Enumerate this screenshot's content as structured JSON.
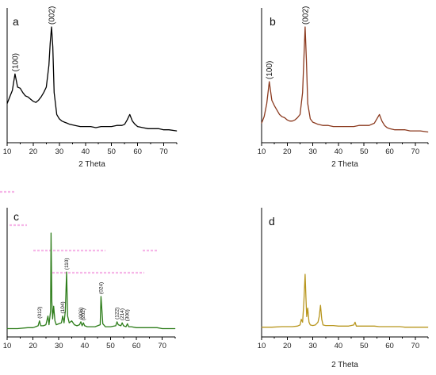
{
  "chart_data": [
    {
      "panel": "a",
      "type": "line",
      "xlabel": "2 Theta",
      "xlim": [
        10,
        75
      ],
      "xticks": [
        "10",
        "20",
        "30",
        "40",
        "50",
        "60",
        "70"
      ],
      "color": "#000000",
      "x": [
        10,
        11,
        12,
        13,
        14,
        15,
        16,
        17,
        18,
        19,
        20,
        21,
        22,
        23,
        24,
        25,
        26,
        26.5,
        27,
        27.5,
        28,
        29,
        30,
        31,
        32,
        33,
        34,
        36,
        38,
        40,
        42,
        44,
        46,
        48,
        50,
        52,
        54,
        55,
        56,
        57,
        58,
        59,
        60,
        62,
        64,
        66,
        68,
        70,
        72,
        75
      ],
      "y": [
        0.3,
        0.36,
        0.42,
        0.57,
        0.45,
        0.44,
        0.4,
        0.37,
        0.36,
        0.34,
        0.32,
        0.31,
        0.33,
        0.36,
        0.4,
        0.45,
        0.65,
        0.85,
        1.0,
        0.82,
        0.4,
        0.2,
        0.16,
        0.14,
        0.13,
        0.12,
        0.11,
        0.1,
        0.09,
        0.09,
        0.09,
        0.08,
        0.09,
        0.09,
        0.09,
        0.1,
        0.1,
        0.11,
        0.15,
        0.2,
        0.14,
        0.11,
        0.09,
        0.08,
        0.07,
        0.07,
        0.07,
        0.06,
        0.06,
        0.05
      ],
      "peaks": [
        {
          "x": 13,
          "y": 0.57,
          "label": "(100)"
        },
        {
          "x": 27,
          "y": 1.0,
          "label": "(002)"
        }
      ]
    },
    {
      "panel": "b",
      "type": "line",
      "xlabel": "2 Theta",
      "xlim": [
        10,
        75
      ],
      "xticks": [
        "10",
        "20",
        "30",
        "40",
        "50",
        "60",
        "70"
      ],
      "color": "#8b3a1f",
      "x": [
        10,
        11,
        12,
        13,
        14,
        15,
        16,
        17,
        18,
        19,
        20,
        21,
        22,
        23,
        24,
        25,
        26,
        26.5,
        27,
        27.5,
        28,
        29,
        30,
        31,
        32,
        34,
        36,
        38,
        40,
        42,
        44,
        46,
        48,
        50,
        52,
        54,
        55,
        56,
        57,
        58,
        59,
        60,
        62,
        64,
        66,
        68,
        70,
        72,
        75
      ],
      "y": [
        0.12,
        0.18,
        0.3,
        0.5,
        0.33,
        0.28,
        0.24,
        0.2,
        0.18,
        0.17,
        0.15,
        0.14,
        0.14,
        0.15,
        0.17,
        0.2,
        0.4,
        0.7,
        1.0,
        0.7,
        0.3,
        0.16,
        0.13,
        0.12,
        0.11,
        0.1,
        0.1,
        0.09,
        0.09,
        0.09,
        0.09,
        0.09,
        0.1,
        0.1,
        0.1,
        0.12,
        0.16,
        0.2,
        0.14,
        0.1,
        0.08,
        0.07,
        0.06,
        0.06,
        0.06,
        0.05,
        0.05,
        0.05,
        0.04
      ],
      "peaks": [
        {
          "x": 13,
          "y": 0.5,
          "label": "(100)"
        },
        {
          "x": 27,
          "y": 1.0,
          "label": "(002)"
        }
      ]
    },
    {
      "panel": "c",
      "type": "line",
      "xlabel": "",
      "xlim": [
        10,
        75
      ],
      "xticks": [
        "10",
        "20",
        "30",
        "40",
        "50",
        "60",
        "70"
      ],
      "color": "#2d7d1a",
      "x": [
        10,
        14,
        18,
        20,
        21,
        22,
        22.5,
        23,
        24,
        25,
        25.8,
        26.2,
        26.8,
        27,
        27.3,
        27.6,
        28,
        28.5,
        29,
        30,
        31,
        31.5,
        32,
        32.5,
        33,
        33.4,
        34,
        35,
        36,
        37,
        38,
        38.5,
        39,
        39.5,
        40,
        41,
        42,
        44,
        46,
        46.3,
        47,
        48,
        50,
        52,
        52.5,
        53,
        54,
        54.5,
        55,
        56,
        56.5,
        57,
        58,
        60,
        62,
        64,
        66,
        68,
        70,
        72,
        75
      ],
      "y": [
        0.02,
        0.02,
        0.03,
        0.03,
        0.04,
        0.05,
        0.1,
        0.05,
        0.05,
        0.06,
        0.15,
        0.06,
        0.2,
        1.0,
        0.3,
        0.12,
        0.25,
        0.1,
        0.06,
        0.07,
        0.08,
        0.15,
        0.08,
        0.2,
        0.6,
        0.15,
        0.08,
        0.1,
        0.06,
        0.05,
        0.06,
        0.09,
        0.05,
        0.08,
        0.05,
        0.04,
        0.04,
        0.04,
        0.06,
        0.35,
        0.07,
        0.04,
        0.04,
        0.05,
        0.09,
        0.06,
        0.05,
        0.08,
        0.05,
        0.04,
        0.07,
        0.04,
        0.04,
        0.03,
        0.03,
        0.03,
        0.03,
        0.03,
        0.02,
        0.02,
        0.02
      ],
      "peaks": [
        {
          "x": 22.5,
          "y": 0.1,
          "label": "(012)"
        },
        {
          "x": 31.5,
          "y": 0.15,
          "label": "(104)"
        },
        {
          "x": 33,
          "y": 0.6,
          "label": "(110)"
        },
        {
          "x": 38.5,
          "y": 0.09,
          "label": "(006)"
        },
        {
          "x": 39.5,
          "y": 0.08,
          "label": "(202)"
        },
        {
          "x": 46.3,
          "y": 0.35,
          "label": "(024)"
        },
        {
          "x": 52.5,
          "y": 0.09,
          "label": "(122)"
        },
        {
          "x": 54.5,
          "y": 0.08,
          "label": "(214)"
        },
        {
          "x": 56.5,
          "y": 0.07,
          "label": "(300)"
        }
      ]
    },
    {
      "panel": "d",
      "type": "line",
      "xlabel": "2 Theta",
      "xlim": [
        10,
        75
      ],
      "xticks": [
        "10",
        "20",
        "30",
        "40",
        "50",
        "60",
        "70"
      ],
      "color": "#b8961e",
      "x": [
        10,
        14,
        18,
        20,
        22,
        24,
        25,
        25.5,
        26,
        26.5,
        27,
        27.3,
        27.6,
        28,
        28.5,
        29,
        30,
        31,
        32,
        32.5,
        33,
        33.5,
        34,
        35,
        36,
        38,
        40,
        42,
        44,
        46,
        46.5,
        47,
        48,
        50,
        52,
        54,
        56,
        58,
        60,
        62,
        64,
        66,
        68,
        70,
        72,
        75
      ],
      "y": [
        0.06,
        0.06,
        0.07,
        0.07,
        0.07,
        0.08,
        0.1,
        0.2,
        0.15,
        0.5,
        1.0,
        0.6,
        0.25,
        0.4,
        0.15,
        0.1,
        0.09,
        0.1,
        0.15,
        0.25,
        0.45,
        0.2,
        0.1,
        0.09,
        0.09,
        0.09,
        0.08,
        0.08,
        0.08,
        0.1,
        0.15,
        0.08,
        0.08,
        0.08,
        0.08,
        0.08,
        0.07,
        0.07,
        0.07,
        0.07,
        0.07,
        0.06,
        0.06,
        0.06,
        0.06,
        0.06
      ],
      "peaks": []
    }
  ]
}
